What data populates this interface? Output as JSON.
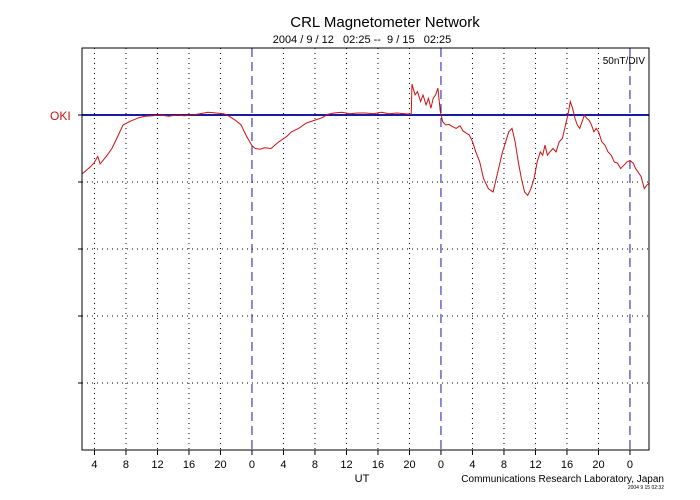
{
  "chart_data": {
    "type": "line",
    "title": "CRL Magnetometer Network",
    "subtitle": "2004 / 9 / 12   02:25 --  9 / 15   02:25",
    "scale_label": "50nT/DIV",
    "xlabel": "UT",
    "credit": "Communications Research Laboratory, Japan",
    "credit_small": "2004 9 15 02:32",
    "station": "OKI",
    "x_tick_labels": [
      "4",
      "8",
      "12",
      "16",
      "20",
      "0",
      "4",
      "8",
      "12",
      "16",
      "20",
      "0",
      "4",
      "8",
      "12",
      "16",
      "20",
      "0"
    ],
    "x_hours_from_start": [
      1.583,
      5.583,
      9.583,
      13.583,
      17.583,
      21.583,
      25.583,
      29.583,
      33.583,
      37.583,
      41.583,
      45.583,
      49.583,
      53.583,
      57.583,
      61.583,
      65.583,
      69.583
    ],
    "xlim_hours": [
      0,
      72
    ],
    "day_boundaries_hours": [
      21.583,
      45.583,
      69.583
    ],
    "y_divisions": 6,
    "y_unit_per_division_nT": 50,
    "baseline_division": 1.0,
    "grid": true,
    "colors": {
      "series": "#cc1111",
      "baseline": "#1a1aa8",
      "day_line": "#1a1aa8",
      "station_label": "#cc1111"
    },
    "series": [
      {
        "x": [
          0,
          1,
          1.5,
          2,
          2.3,
          2.8,
          3.2,
          3.8,
          4.5,
          5.2,
          6,
          6.6,
          7.2,
          8,
          9,
          10,
          11,
          12,
          13,
          14,
          15,
          16,
          17,
          18,
          18.7,
          19.5,
          20.2,
          20.9,
          21.3,
          21.6,
          22,
          22.6,
          23.2,
          24,
          25,
          26,
          26.6,
          27.5,
          28.5,
          29.5,
          30.5,
          31.2,
          32,
          33,
          34,
          35,
          36,
          37,
          38,
          39,
          40,
          41,
          41.8,
          41.9,
          42.3,
          42.6,
          43,
          43.3,
          43.7,
          44,
          44.3,
          44.6,
          44.9,
          45.2,
          45.5,
          45.8,
          46.2,
          46.6,
          47,
          47.5,
          48,
          48.4,
          48.8,
          49.2,
          49.6,
          50,
          50.5,
          51,
          51.6,
          52.2,
          52.6,
          53,
          53.4,
          53.8,
          54.2,
          54.6,
          55,
          55.4,
          55.8,
          56.2,
          56.6,
          57,
          57.4,
          57.8,
          58.2,
          58.5,
          58.8,
          59.1,
          59.4,
          59.8,
          60.2,
          60.6,
          61,
          61.4,
          61.7,
          62,
          62.3,
          62.6,
          62.9,
          63.2,
          63.5,
          63.8,
          64.1,
          64.4,
          64.7,
          65,
          65.3,
          65.6,
          66,
          66.4,
          66.8,
          67.2,
          67.6,
          68,
          68.4,
          68.8,
          69.2,
          69.6,
          70,
          70.3,
          70.6,
          71,
          71.4,
          71.7,
          72
        ],
        "y": [
          0.88,
          0.78,
          0.72,
          0.62,
          0.73,
          0.66,
          0.6,
          0.5,
          0.33,
          0.15,
          0.1,
          0.07,
          0.04,
          0.02,
          0.01,
          0.0,
          0.02,
          0.0,
          0.01,
          0.0,
          -0.02,
          -0.04,
          -0.03,
          -0.02,
          0.02,
          0.08,
          0.15,
          0.32,
          0.4,
          0.46,
          0.5,
          0.51,
          0.49,
          0.5,
          0.4,
          0.32,
          0.25,
          0.2,
          0.12,
          0.08,
          0.04,
          -0.01,
          -0.03,
          -0.04,
          -0.02,
          -0.03,
          -0.03,
          -0.02,
          -0.04,
          -0.02,
          -0.03,
          -0.02,
          -0.01,
          -0.46,
          -0.3,
          -0.35,
          -0.2,
          -0.3,
          -0.15,
          -0.25,
          -0.1,
          -0.25,
          -0.3,
          -0.4,
          -0.05,
          0.1,
          0.15,
          0.14,
          0.17,
          0.2,
          0.16,
          0.24,
          0.27,
          0.3,
          0.4,
          0.55,
          0.7,
          0.95,
          1.1,
          1.15,
          0.95,
          0.75,
          0.55,
          0.4,
          0.25,
          0.2,
          0.4,
          0.7,
          0.95,
          1.15,
          1.2,
          1.1,
          0.95,
          0.7,
          0.55,
          0.6,
          0.45,
          0.6,
          0.55,
          0.5,
          0.55,
          0.4,
          0.35,
          0.15,
          0.0,
          -0.2,
          -0.1,
          0.05,
          0.15,
          0.2,
          0.1,
          0.0,
          0.05,
          0.08,
          0.15,
          0.25,
          0.2,
          0.25,
          0.4,
          0.45,
          0.55,
          0.6,
          0.7,
          0.72,
          0.8,
          0.75,
          0.7,
          0.68,
          0.72,
          0.8,
          0.85,
          0.92,
          1.1,
          1.05,
          1.02
        ]
      }
    ]
  }
}
